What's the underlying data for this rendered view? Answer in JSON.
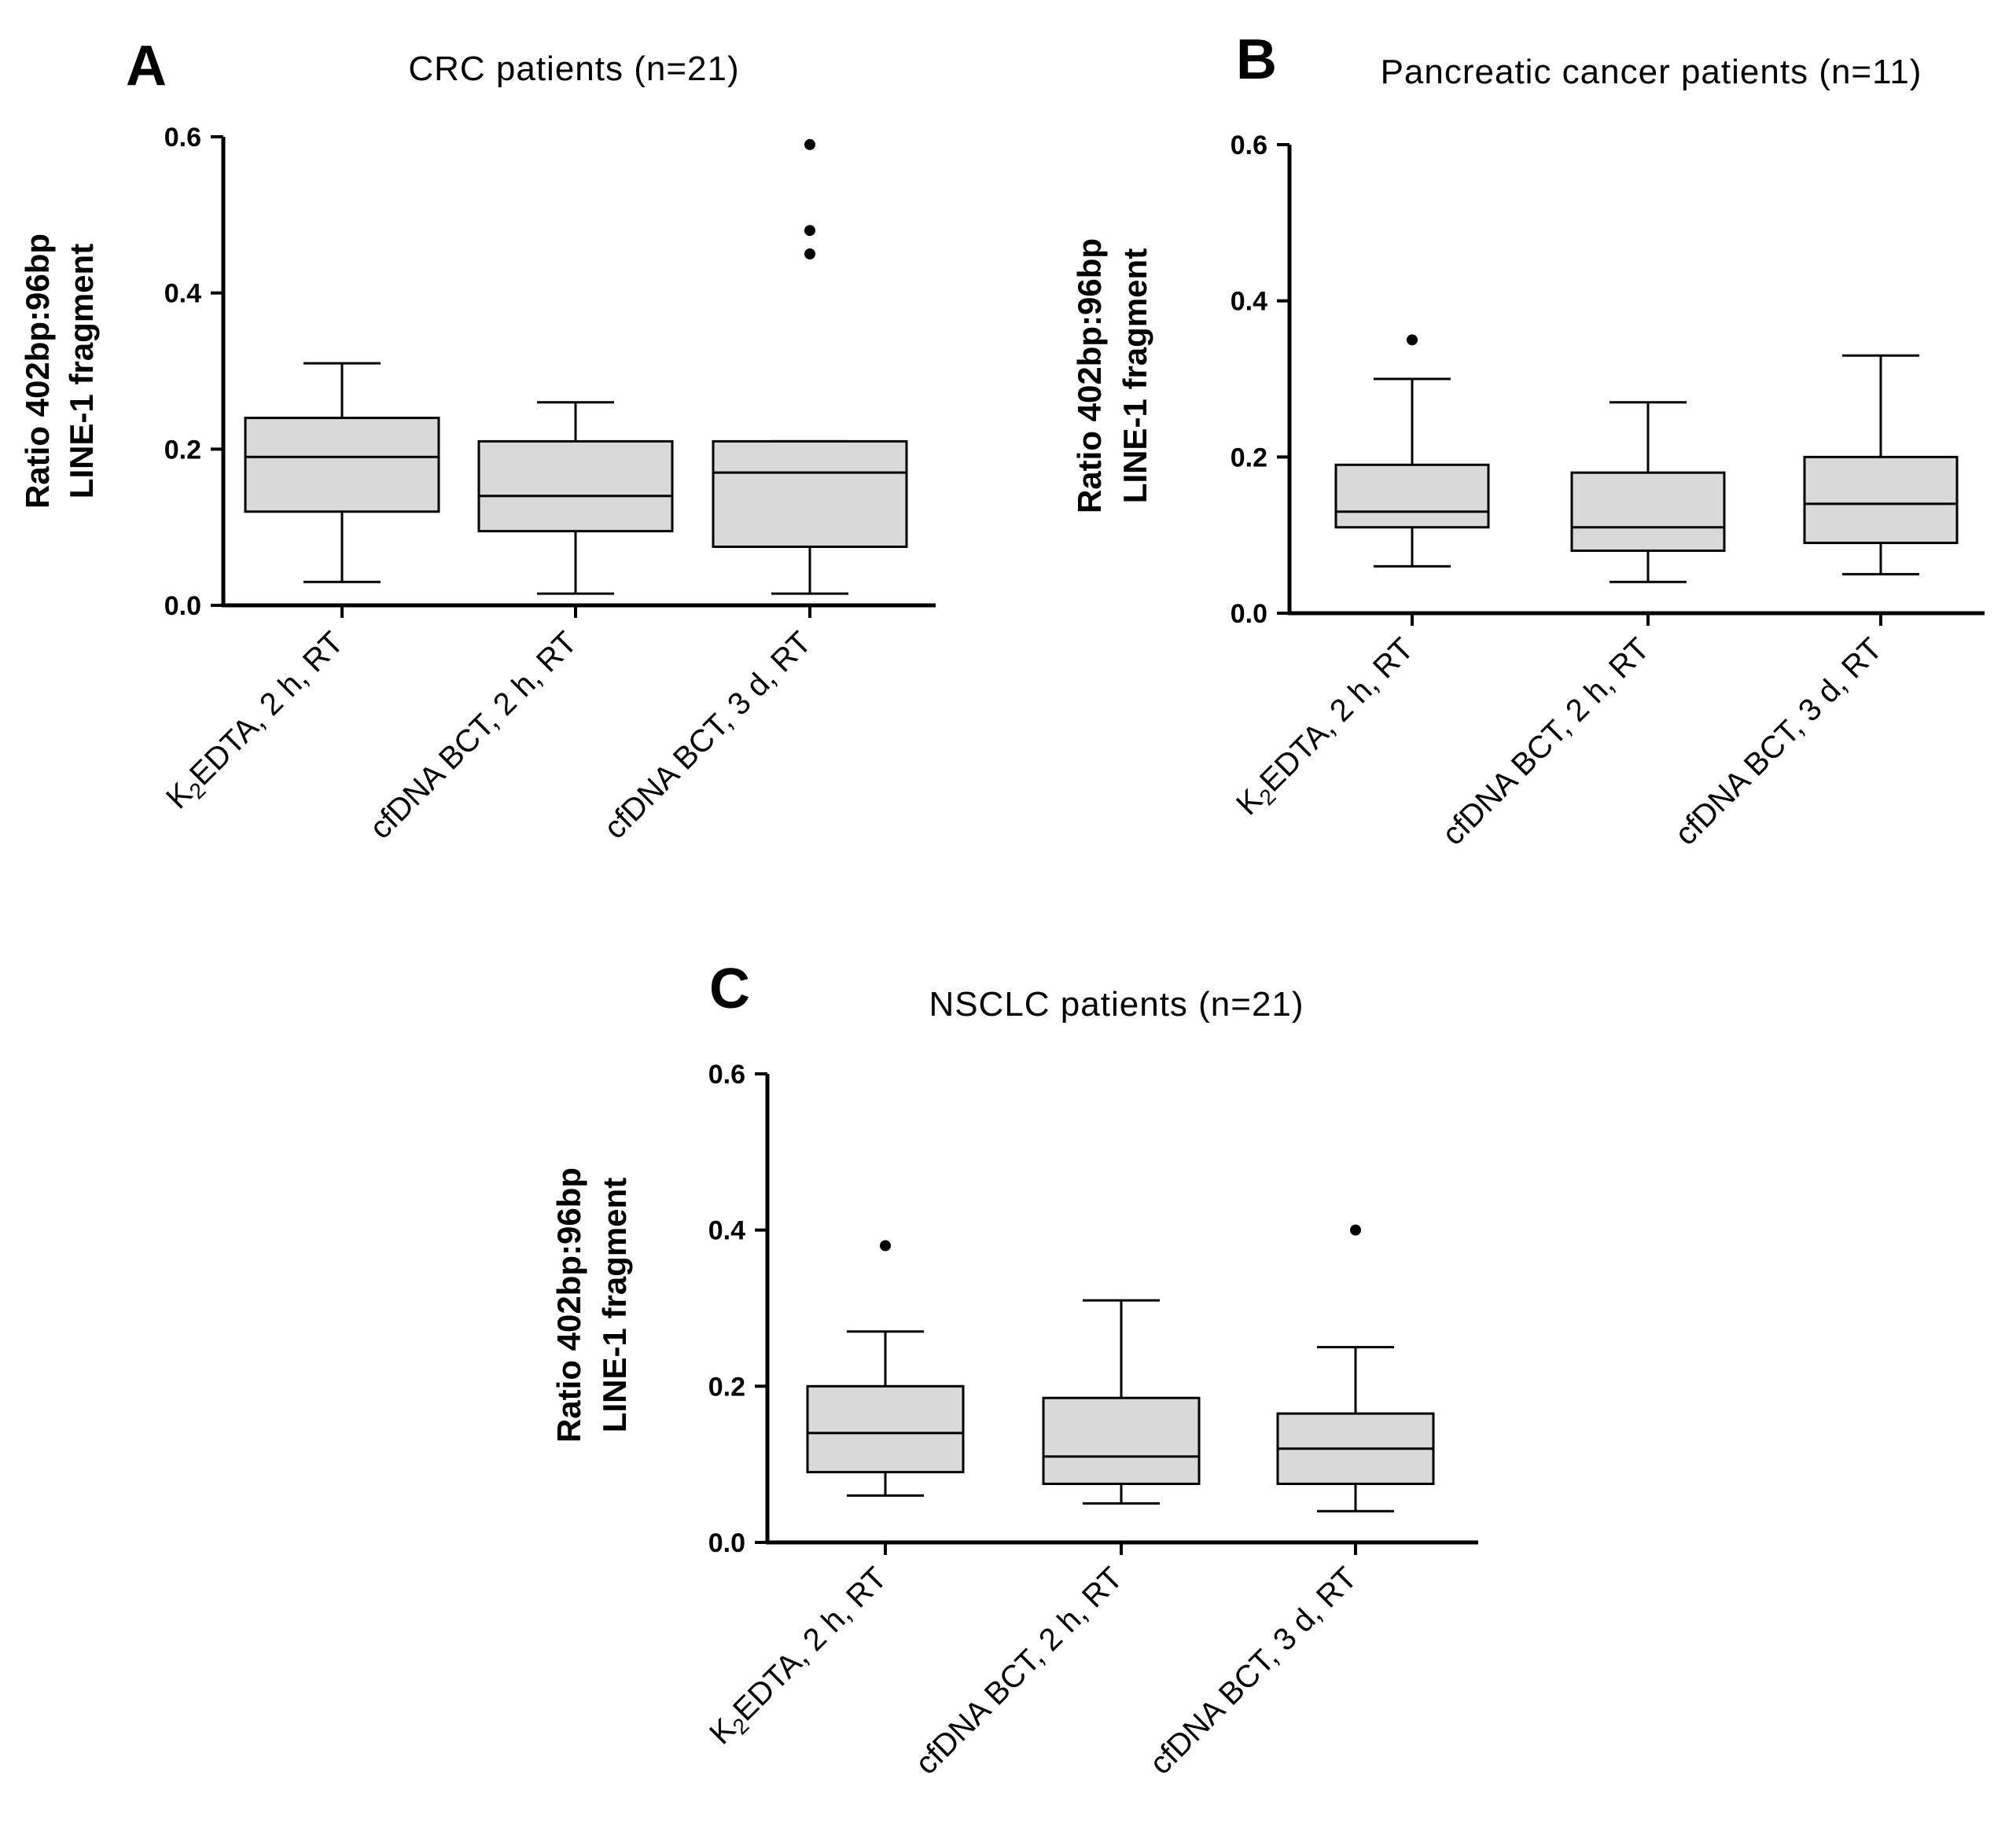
{
  "figure": {
    "background": "#ffffff",
    "box_fill": "#d9d9d9"
  },
  "chart_data": [
    {
      "panel": "A",
      "type": "box",
      "title": "CRC patients (n=21)",
      "ylabel_line1": "Ratio 402bp:96bp",
      "ylabel_line2": "LINE-1 fragment",
      "ylim": [
        0,
        0.6
      ],
      "yticks": [
        "0.0",
        "0.2",
        "0.4",
        "0.6"
      ],
      "categories": [
        {
          "pre": "K",
          "sub": "2",
          "post": "EDTA, 2 h, RT"
        },
        {
          "pre": "cfDNA BCT, 2 h, RT",
          "sub": "",
          "post": ""
        },
        {
          "pre": "cfDNA BCT, 3 d, RT",
          "sub": "",
          "post": ""
        }
      ],
      "boxes": [
        {
          "min": 0.03,
          "q1": 0.12,
          "median": 0.19,
          "q3": 0.24,
          "max": 0.31,
          "outliers": []
        },
        {
          "min": 0.015,
          "q1": 0.095,
          "median": 0.14,
          "q3": 0.21,
          "max": 0.26,
          "outliers": []
        },
        {
          "min": 0.015,
          "q1": 0.075,
          "median": 0.17,
          "q3": 0.21,
          "max": 0.21,
          "outliers": [
            0.45,
            0.48,
            0.59
          ]
        }
      ]
    },
    {
      "panel": "B",
      "type": "box",
      "title": "Pancreatic cancer patients (n=11)",
      "ylabel_line1": "Ratio 402bp:96bp",
      "ylabel_line2": "LINE-1 fragment",
      "ylim": [
        0,
        0.6
      ],
      "yticks": [
        "0.0",
        "0.2",
        "0.4",
        "0.6"
      ],
      "categories": [
        {
          "pre": "K",
          "sub": "2",
          "post": "EDTA, 2 h, RT"
        },
        {
          "pre": "cfDNA BCT, 2 h, RT",
          "sub": "",
          "post": ""
        },
        {
          "pre": "cfDNA BCT, 3 d, RT",
          "sub": "",
          "post": ""
        }
      ],
      "boxes": [
        {
          "min": 0.06,
          "q1": 0.11,
          "median": 0.13,
          "q3": 0.19,
          "max": 0.3,
          "outliers": [
            0.35
          ]
        },
        {
          "min": 0.04,
          "q1": 0.08,
          "median": 0.11,
          "q3": 0.18,
          "max": 0.27,
          "outliers": []
        },
        {
          "min": 0.05,
          "q1": 0.09,
          "median": 0.14,
          "q3": 0.2,
          "max": 0.33,
          "outliers": []
        }
      ]
    },
    {
      "panel": "C",
      "type": "box",
      "title": "NSCLC patients (n=21)",
      "ylabel_line1": "Ratio 402bp:96bp",
      "ylabel_line2": "LINE-1 fragment",
      "ylim": [
        0,
        0.6
      ],
      "yticks": [
        "0.0",
        "0.2",
        "0.4",
        "0.6"
      ],
      "categories": [
        {
          "pre": "K",
          "sub": "2",
          "post": "EDTA, 2 h, RT"
        },
        {
          "pre": "cfDNA BCT, 2 h, RT",
          "sub": "",
          "post": ""
        },
        {
          "pre": "cfDNA BCT, 3 d, RT",
          "sub": "",
          "post": ""
        }
      ],
      "boxes": [
        {
          "min": 0.06,
          "q1": 0.09,
          "median": 0.14,
          "q3": 0.2,
          "max": 0.27,
          "outliers": [
            0.38
          ]
        },
        {
          "min": 0.05,
          "q1": 0.075,
          "median": 0.11,
          "q3": 0.185,
          "max": 0.31,
          "outliers": []
        },
        {
          "min": 0.04,
          "q1": 0.075,
          "median": 0.12,
          "q3": 0.165,
          "max": 0.25,
          "outliers": [
            0.4
          ]
        }
      ]
    }
  ]
}
